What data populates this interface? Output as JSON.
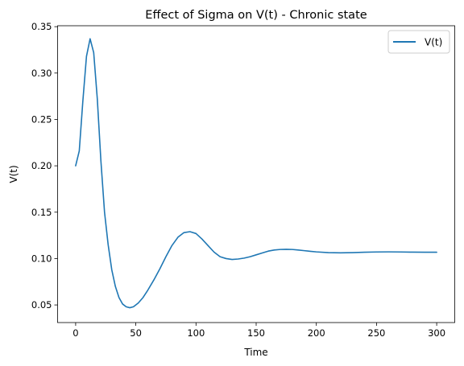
{
  "chart_data": {
    "type": "line",
    "title": "Effect of Sigma on V(t) - Chronic state",
    "xlabel": "Time",
    "ylabel": "V(t)",
    "xlim": [
      -15,
      315
    ],
    "ylim": [
      0.031,
      0.351
    ],
    "xticks": [
      0,
      50,
      100,
      150,
      200,
      250,
      300
    ],
    "xtick_labels": [
      "0",
      "50",
      "100",
      "150",
      "200",
      "250",
      "300"
    ],
    "yticks": [
      0.05,
      0.1,
      0.15,
      0.2,
      0.25,
      0.3,
      0.35
    ],
    "ytick_labels": [
      "0.05",
      "0.10",
      "0.15",
      "0.20",
      "0.25",
      "0.30",
      "0.35"
    ],
    "grid": false,
    "legend_position": "top-right",
    "series": [
      {
        "name": "V(t)",
        "color": "#1f77b4",
        "x": [
          0,
          3,
          6,
          9,
          12,
          15,
          18,
          21,
          24,
          27,
          30,
          33,
          36,
          39,
          42,
          45,
          48,
          52,
          56,
          60,
          65,
          70,
          75,
          80,
          85,
          90,
          95,
          100,
          105,
          110,
          115,
          120,
          125,
          130,
          135,
          140,
          145,
          150,
          155,
          160,
          165,
          170,
          175,
          180,
          185,
          190,
          195,
          200,
          210,
          220,
          230,
          240,
          250,
          260,
          270,
          280,
          290,
          300
        ],
        "values": [
          0.2,
          0.216,
          0.27,
          0.318,
          0.337,
          0.322,
          0.272,
          0.205,
          0.15,
          0.115,
          0.088,
          0.07,
          0.058,
          0.051,
          0.048,
          0.047,
          0.048,
          0.052,
          0.058,
          0.066,
          0.077,
          0.089,
          0.102,
          0.114,
          0.123,
          0.128,
          0.129,
          0.127,
          0.121,
          0.114,
          0.107,
          0.102,
          0.1,
          0.099,
          0.0995,
          0.1005,
          0.102,
          0.104,
          0.106,
          0.108,
          0.1092,
          0.1098,
          0.11,
          0.1098,
          0.1092,
          0.1085,
          0.1078,
          0.1072,
          0.1064,
          0.1062,
          0.1064,
          0.1068,
          0.1071,
          0.1072,
          0.1071,
          0.1069,
          0.1068,
          0.1068
        ]
      }
    ]
  }
}
